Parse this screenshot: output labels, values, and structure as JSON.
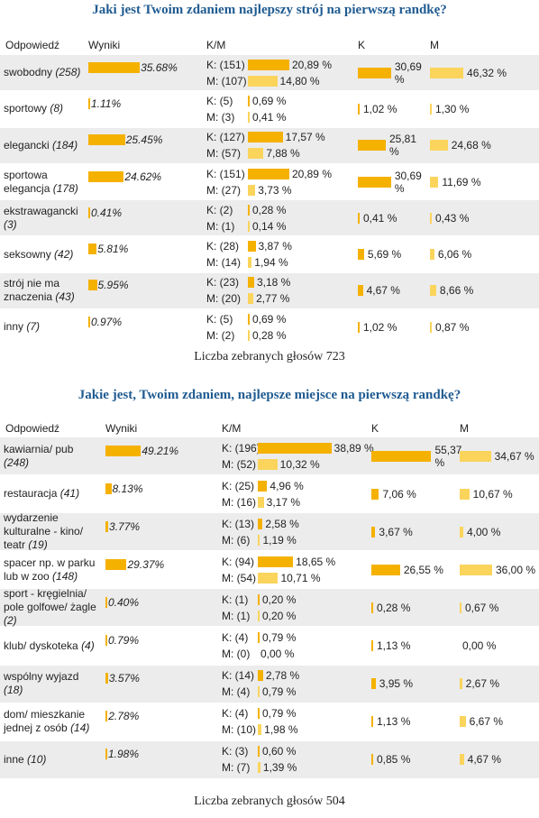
{
  "surveys": [
    {
      "title": "Jaki jest Twoim zdaniem najlepszy strój na pierwszą randkę?",
      "headers": {
        "answer": "Odpowiedź",
        "results": "Wyniki",
        "km": "K/M",
        "k": "K",
        "m": "M"
      },
      "summary": "Liczba zebranych głosów 723",
      "rows": [
        {
          "name": "swobodny",
          "count": "(258)",
          "pct": "35.68%",
          "pct_value": 35.68,
          "k_count": "K: (151)",
          "k_pct": "20,89 %",
          "k_value": 20.89,
          "m_count": "M: (107)",
          "m_pct": "14,80 %",
          "m_value": 14.8,
          "k_share": "30,69 %",
          "k_share_value": 30.69,
          "m_share": "46,32 %",
          "m_share_value": 46.32
        },
        {
          "name": "sportowy",
          "count": "(8)",
          "pct": "1.11%",
          "pct_value": 1.11,
          "k_count": "K: (5)",
          "k_pct": "0,69 %",
          "k_value": 0.69,
          "m_count": "M: (3)",
          "m_pct": "0,41 %",
          "m_value": 0.41,
          "k_share": "1,02 %",
          "k_share_value": 1.02,
          "m_share": "1,30 %",
          "m_share_value": 1.3
        },
        {
          "name": "elegancki",
          "count": "(184)",
          "pct": "25.45%",
          "pct_value": 25.45,
          "k_count": "K: (127)",
          "k_pct": "17,57 %",
          "k_value": 17.57,
          "m_count": "M: (57)",
          "m_pct": "7,88 %",
          "m_value": 7.88,
          "k_share": "25,81 %",
          "k_share_value": 25.81,
          "m_share": "24,68 %",
          "m_share_value": 24.68
        },
        {
          "name": "sportowa elegancja",
          "count": "(178)",
          "pct": "24.62%",
          "pct_value": 24.62,
          "k_count": "K: (151)",
          "k_pct": "20,89 %",
          "k_value": 20.89,
          "m_count": "M: (27)",
          "m_pct": "3,73 %",
          "m_value": 3.73,
          "k_share": "30,69 %",
          "k_share_value": 30.69,
          "m_share": "11,69 %",
          "m_share_value": 11.69
        },
        {
          "name": "ekstrawagancki",
          "count": "(3)",
          "pct": "0.41%",
          "pct_value": 0.41,
          "k_count": "K: (2)",
          "k_pct": "0,28 %",
          "k_value": 0.28,
          "m_count": "M: (1)",
          "m_pct": "0,14 %",
          "m_value": 0.14,
          "k_share": "0,41 %",
          "k_share_value": 0.41,
          "m_share": "0,43 %",
          "m_share_value": 0.43
        },
        {
          "name": "seksowny",
          "count": "(42)",
          "pct": "5.81%",
          "pct_value": 5.81,
          "k_count": "K: (28)",
          "k_pct": "3,87 %",
          "k_value": 3.87,
          "m_count": "M: (14)",
          "m_pct": "1,94 %",
          "m_value": 1.94,
          "k_share": "5,69 %",
          "k_share_value": 5.69,
          "m_share": "6,06 %",
          "m_share_value": 6.06
        },
        {
          "name": "strój nie ma znaczenia",
          "count": "(43)",
          "pct": "5.95%",
          "pct_value": 5.95,
          "k_count": "K: (23)",
          "k_pct": "3,18 %",
          "k_value": 3.18,
          "m_count": "M: (20)",
          "m_pct": "2,77 %",
          "m_value": 2.77,
          "k_share": "4,67 %",
          "k_share_value": 4.67,
          "m_share": "8,66 %",
          "m_share_value": 8.66
        },
        {
          "name": "inny",
          "count": "(7)",
          "pct": "0.97%",
          "pct_value": 0.97,
          "k_count": "K: (5)",
          "k_pct": "0,69 %",
          "k_value": 0.69,
          "m_count": "M: (2)",
          "m_pct": "0,28 %",
          "m_value": 0.28,
          "k_share": "1,02 %",
          "k_share_value": 1.02,
          "m_share": "0,87 %",
          "m_share_value": 0.87
        }
      ]
    },
    {
      "title": "Jakie jest, Twoim zdaniem, najlepsze miejsce na pierwszą randkę?",
      "headers": {
        "answer": "Odpowiedź",
        "results": "Wyniki",
        "km": "K/M",
        "k": "K",
        "m": "M"
      },
      "summary": "Liczba zebranych głosów 504",
      "rows": [
        {
          "name": "kawiarnia/ pub",
          "count": "(248)",
          "pct": "49.21%",
          "pct_value": 49.21,
          "k_count": "K: (196)",
          "k_pct": "38,89 %",
          "k_value": 38.89,
          "m_count": "M: (52)",
          "m_pct": "10,32 %",
          "m_value": 10.32,
          "k_share": "55,37 %",
          "k_share_value": 55.37,
          "m_share": "34,67 %",
          "m_share_value": 34.67
        },
        {
          "name": "restauracja",
          "count": "(41)",
          "pct": "8.13%",
          "pct_value": 8.13,
          "k_count": "K: (25)",
          "k_pct": "4,96 %",
          "k_value": 4.96,
          "m_count": "M: (16)",
          "m_pct": "3,17 %",
          "m_value": 3.17,
          "k_share": "7,06 %",
          "k_share_value": 7.06,
          "m_share": "10,67 %",
          "m_share_value": 10.67
        },
        {
          "name": "wydarzenie kulturalne - kino/ teatr",
          "count": "(19)",
          "pct": "3.77%",
          "pct_value": 3.77,
          "k_count": "K: (13)",
          "k_pct": "2,58 %",
          "k_value": 2.58,
          "m_count": "M: (6)",
          "m_pct": "1,19 %",
          "m_value": 1.19,
          "k_share": "3,67 %",
          "k_share_value": 3.67,
          "m_share": "4,00 %",
          "m_share_value": 4.0
        },
        {
          "name": "spacer np. w parku lub w zoo",
          "count": "(148)",
          "pct": "29.37%",
          "pct_value": 29.37,
          "k_count": "K: (94)",
          "k_pct": "18,65 %",
          "k_value": 18.65,
          "m_count": "M: (54)",
          "m_pct": "10,71 %",
          "m_value": 10.71,
          "k_share": "26,55 %",
          "k_share_value": 26.55,
          "m_share": "36,00 %",
          "m_share_value": 36.0
        },
        {
          "name": "sport - kręgielnia/ pole golfowe/ żagle",
          "count": "(2)",
          "pct": "0.40%",
          "pct_value": 0.4,
          "k_count": "K: (1)",
          "k_pct": "0,20 %",
          "k_value": 0.2,
          "m_count": "M: (1)",
          "m_pct": "0,20 %",
          "m_value": 0.2,
          "k_share": "0,28 %",
          "k_share_value": 0.28,
          "m_share": "0,67 %",
          "m_share_value": 0.67
        },
        {
          "name": "klub/ dyskoteka",
          "count": "(4)",
          "pct": "0.79%",
          "pct_value": 0.79,
          "k_count": "K: (4)",
          "k_pct": "0,79 %",
          "k_value": 0.79,
          "m_count": "M: (0)",
          "m_pct": "0,00 %",
          "m_value": 0.0,
          "k_share": "1,13 %",
          "k_share_value": 1.13,
          "m_share": "0,00 %",
          "m_share_value": 0.0
        },
        {
          "name": "wspólny wyjazd",
          "count": "(18)",
          "pct": "3.57%",
          "pct_value": 3.57,
          "k_count": "K: (14)",
          "k_pct": "2,78 %",
          "k_value": 2.78,
          "m_count": "M: (4)",
          "m_pct": "0,79 %",
          "m_value": 0.79,
          "k_share": "3,95 %",
          "k_share_value": 3.95,
          "m_share": "2,67 %",
          "m_share_value": 2.67
        },
        {
          "name": "dom/ mieszkanie jednej z osób",
          "count": "(14)",
          "pct": "2.78%",
          "pct_value": 2.78,
          "k_count": "K: (4)",
          "k_pct": "0,79 %",
          "k_value": 0.79,
          "m_count": "M: (10)",
          "m_pct": "1,98 %",
          "m_value": 1.98,
          "k_share": "1,13 %",
          "k_share_value": 1.13,
          "m_share": "6,67 %",
          "m_share_value": 6.67
        },
        {
          "name": "inne",
          "count": "(10)",
          "pct": "1.98%",
          "pct_value": 1.98,
          "k_count": "K: (3)",
          "k_pct": "0,60 %",
          "k_value": 0.6,
          "m_count": "M: (7)",
          "m_pct": "1,39 %",
          "m_value": 1.39,
          "k_share": "0,85 %",
          "k_share_value": 0.85,
          "m_share": "4,67 %",
          "m_share_value": 4.67
        }
      ]
    }
  ],
  "colors": {
    "bar_k": "#f5b100",
    "bar_m": "#fbd45c",
    "title": "#1f5b91",
    "row_shade": "#ececec"
  },
  "chart_data": [
    {
      "type": "bar",
      "title": "Jaki jest Twoim zdaniem najlepszy strój na pierwszą randkę?",
      "categories": [
        "swobodny",
        "sportowy",
        "elegancki",
        "sportowa elegancja",
        "ekstrawagancki",
        "seksowny",
        "strój nie ma znaczenia",
        "inny"
      ],
      "series": [
        {
          "name": "Wyniki",
          "values": [
            35.68,
            1.11,
            25.45,
            24.62,
            0.41,
            5.81,
            5.95,
            0.97
          ]
        },
        {
          "name": "K",
          "values": [
            30.69,
            1.02,
            25.81,
            30.69,
            0.41,
            5.69,
            4.67,
            1.02
          ]
        },
        {
          "name": "M",
          "values": [
            46.32,
            1.3,
            24.68,
            11.69,
            0.43,
            6.06,
            8.66,
            0.87
          ]
        }
      ]
    },
    {
      "type": "bar",
      "title": "Jakie jest, Twoim zdaniem, najlepsze miejsce na pierwszą randkę?",
      "categories": [
        "kawiarnia/ pub",
        "restauracja",
        "wydarzenie kulturalne - kino/ teatr",
        "spacer np. w parku lub w zoo",
        "sport - kręgielnia/ pole golfowe/ żagle",
        "klub/ dyskoteka",
        "wspólny wyjazd",
        "dom/ mieszkanie jednej z osób",
        "inne"
      ],
      "series": [
        {
          "name": "Wyniki",
          "values": [
            49.21,
            8.13,
            3.77,
            29.37,
            0.4,
            0.79,
            3.57,
            2.78,
            1.98
          ]
        },
        {
          "name": "K",
          "values": [
            55.37,
            7.06,
            3.67,
            26.55,
            0.28,
            1.13,
            3.95,
            1.13,
            0.85
          ]
        },
        {
          "name": "M",
          "values": [
            34.67,
            10.67,
            4.0,
            36.0,
            0.67,
            0.0,
            2.67,
            6.67,
            4.67
          ]
        }
      ]
    }
  ]
}
